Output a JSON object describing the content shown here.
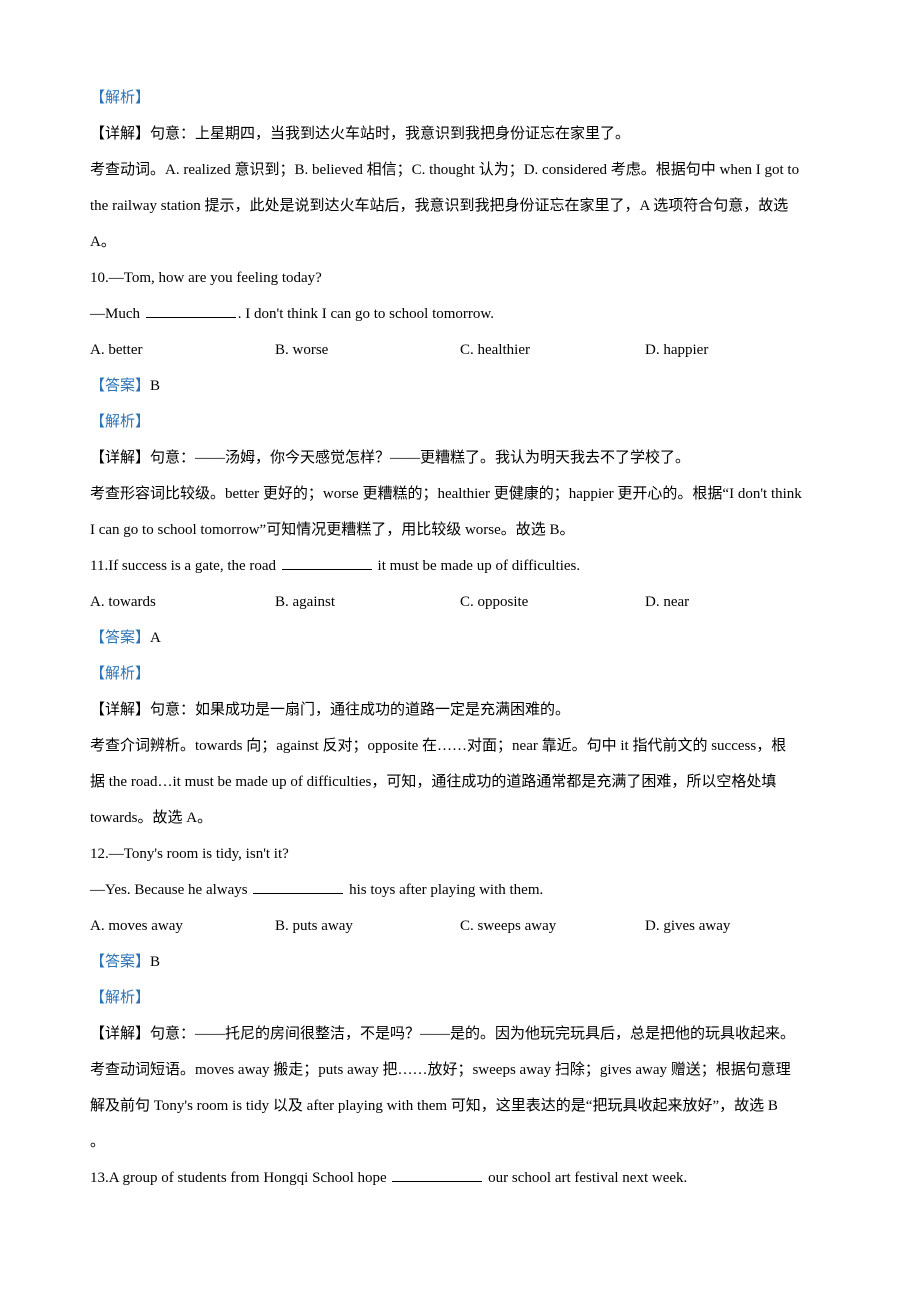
{
  "labels": {
    "analysis": "【解析】",
    "detail": "【详解】",
    "answer": "【答案】"
  },
  "q9": {
    "detail": "【详解】句意：上星期四，当我到达火车站时，我意识到我把身份证忘在家里了。",
    "explain1": "考查动词。A. realized 意识到；B. believed 相信；C. thought 认为；D. considered 考虑。根据句中 when I got to",
    "explain2": "the railway station 提示，此处是说到达火车站后，我意识到我把身份证忘在家里了，A 选项符合句意，故选",
    "explain3": "A。"
  },
  "q10": {
    "stem1": "10.—Tom, how are you feeling today?",
    "stem2a": "—Much ",
    "stem2b": ". I don't think I can go to school tomorrow.",
    "optA": "A.  better",
    "optB": "B.  worse",
    "optC": "C.  healthier",
    "optD": "D.  happier",
    "answer": "B",
    "detail": "【详解】句意：——汤姆，你今天感觉怎样？——更糟糕了。我认为明天我去不了学校了。",
    "explain1": "考查形容词比较级。better 更好的；worse 更糟糕的；healthier 更健康的；happier 更开心的。根据“I don't think",
    "explain2": "I can go to school tomorrow”可知情况更糟糕了，用比较级 worse。故选 B。"
  },
  "q11": {
    "stem1a": "11.If success is a gate, the road ",
    "stem1b": " it must be made up of difficulties.",
    "optA": "A.  towards",
    "optB": "B.  against",
    "optC": "C.  opposite",
    "optD": "D.  near",
    "answer": "A",
    "detail": "【详解】句意：如果成功是一扇门，通往成功的道路一定是充满困难的。",
    "explain1": "考查介词辨析。towards 向；against 反对；opposite 在……对面；near 靠近。句中 it 指代前文的 success，根",
    "explain2": "据 the road…it must be made up of difficulties，可知，通往成功的道路通常都是充满了困难，所以空格处填",
    "explain3": "towards。故选 A。"
  },
  "q12": {
    "stem1": "12.—Tony's room is tidy, isn't it?",
    "stem2a": "—Yes. Because he always ",
    "stem2b": " his toys after playing with them.",
    "optA": "A.  moves away",
    "optB": "B.  puts away",
    "optC": "C.  sweeps away",
    "optD": "D.  gives away",
    "answer": "B",
    "detail": "【详解】句意：——托尼的房间很整洁，不是吗？——是的。因为他玩完玩具后，总是把他的玩具收起来。",
    "explain1": "考查动词短语。moves away 搬走；puts away 把……放好；sweeps away 扫除；gives away 赠送；根据句意理",
    "explain2": "解及前句 Tony's room is tidy 以及 after playing with them 可知，这里表达的是“把玩具收起来放好”，故选 B",
    "explain3": "。"
  },
  "q13": {
    "stem1a": "13.A group of students from Hongqi School hope ",
    "stem1b": " our school art festival next week."
  }
}
